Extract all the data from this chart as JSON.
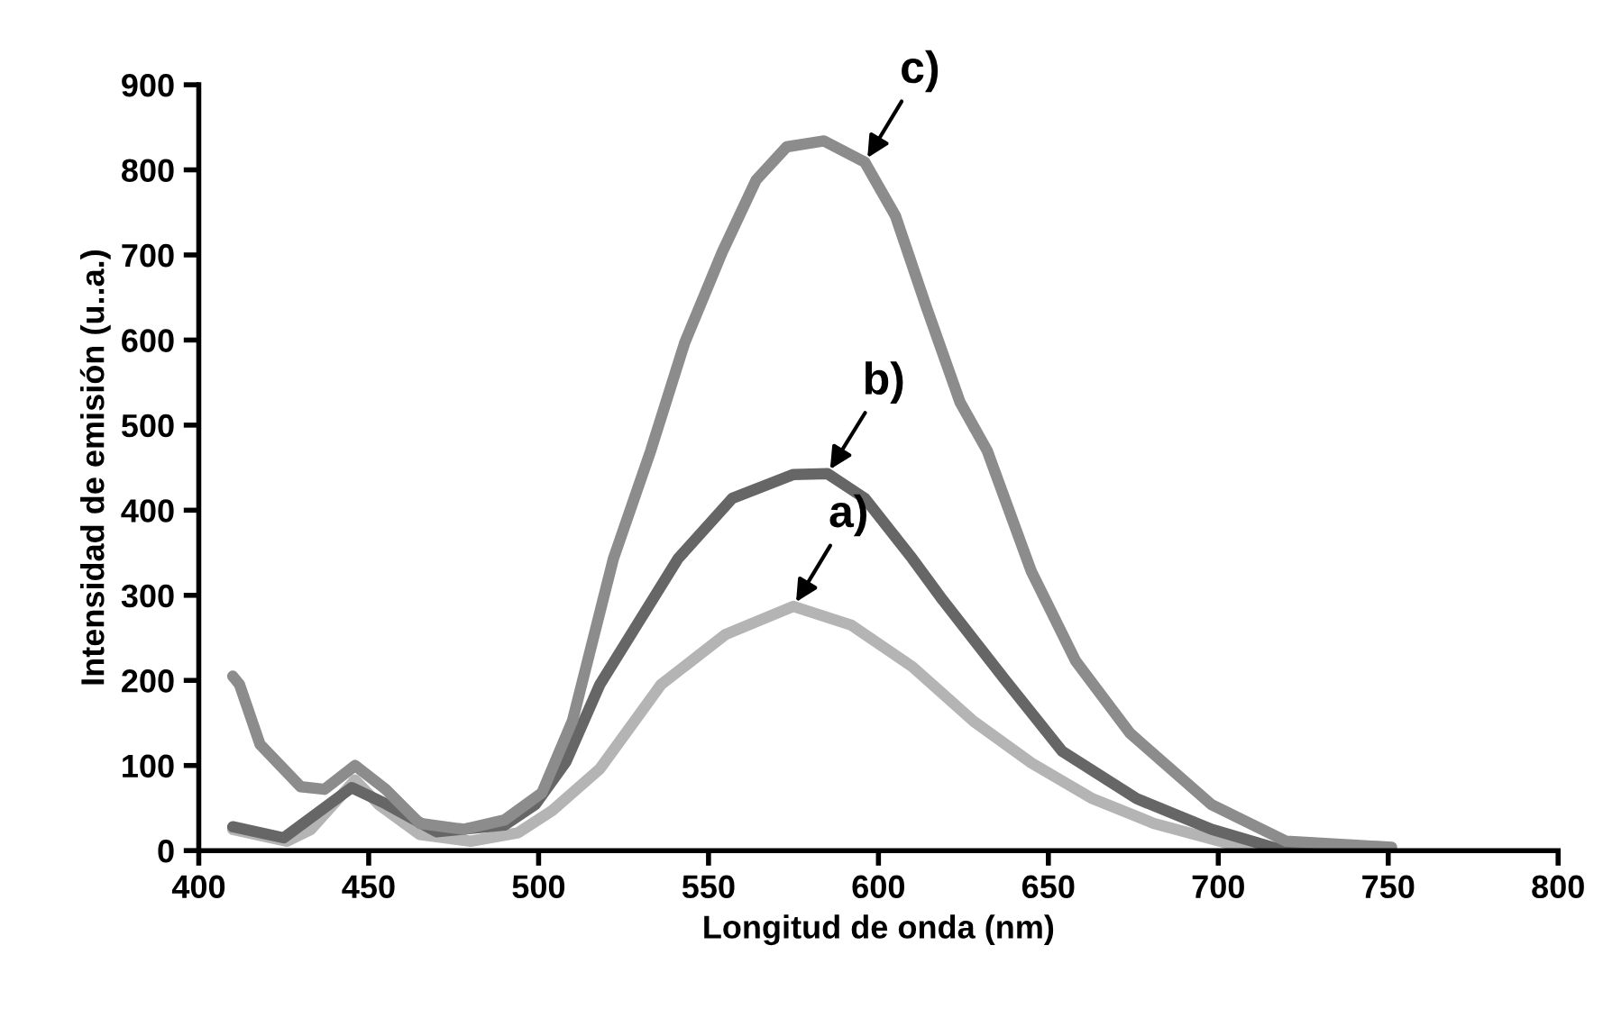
{
  "chart_data": {
    "type": "line",
    "xlabel": "Longitud de onda (nm)",
    "ylabel": "Intensidad de emisión (u..a.)",
    "xlim": [
      400,
      800
    ],
    "xticks": [
      400,
      450,
      500,
      550,
      600,
      650,
      700,
      750,
      800
    ],
    "ylim": [
      0,
      900
    ],
    "yticks": [
      0,
      100,
      200,
      300,
      400,
      500,
      600,
      700,
      800,
      900
    ],
    "grid": false,
    "legend": false,
    "marker": "none",
    "line_style": "solid",
    "series": [
      {
        "color": "#b4b4b4",
        "x": [
          410,
          426,
          433,
          446,
          453,
          465,
          480,
          494,
          504,
          518,
          536,
          555,
          575,
          592,
          610,
          628,
          645,
          663,
          681,
          707,
          720,
          750
        ],
        "values": [
          25,
          11,
          25,
          83,
          54,
          19,
          11,
          21,
          47,
          96,
          195,
          254,
          287,
          265,
          216,
          152,
          103,
          61,
          32,
          4,
          2,
          1
        ]
      },
      {
        "color": "#666666",
        "x": [
          410,
          425,
          445,
          455,
          470,
          490,
          499,
          508,
          518,
          541,
          557,
          575,
          585,
          596,
          610,
          619,
          637,
          654,
          676,
          698,
          716,
          750
        ],
        "values": [
          28,
          15,
          74,
          55,
          22,
          30,
          54,
          104,
          195,
          343,
          414,
          442,
          443,
          414,
          343,
          294,
          202,
          117,
          61,
          25,
          4,
          1
        ]
      },
      {
        "color": "#8c8c8c",
        "x": [
          410,
          412,
          418,
          430,
          437,
          446,
          455,
          465,
          478,
          490,
          501,
          510,
          522,
          533,
          543,
          554,
          564,
          573,
          584,
          596,
          605,
          614,
          624,
          632,
          645,
          658,
          674,
          698,
          720,
          751
        ],
        "values": [
          205,
          195,
          125,
          75,
          72,
          100,
          72,
          32,
          25,
          36,
          68,
          153,
          343,
          470,
          597,
          703,
          788,
          827,
          834,
          809,
          746,
          640,
          527,
          470,
          328,
          223,
          138,
          54,
          11,
          4
        ]
      }
    ],
    "annotations": [
      {
        "text": "a)",
        "x": 575,
        "y": 287
      },
      {
        "text": "b)",
        "x": 585,
        "y": 443
      },
      {
        "text": "c)",
        "x": 596,
        "y": 809
      }
    ]
  }
}
